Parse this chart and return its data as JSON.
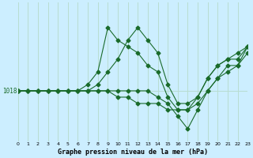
{
  "title": "Graphe pression niveau de la mer (hPa)",
  "background_color": "#cceeff",
  "grid_color": "#b8ddd0",
  "line_color": "#1a6b2a",
  "xlim": [
    0,
    23
  ],
  "ylim": [
    1010,
    1032
  ],
  "y_label_value": 1018,
  "x_ticks": [
    0,
    1,
    2,
    3,
    4,
    5,
    6,
    7,
    8,
    9,
    10,
    11,
    12,
    13,
    14,
    15,
    16,
    17,
    18,
    19,
    20,
    21,
    22,
    23
  ],
  "series": [
    {
      "x": [
        0,
        1,
        2,
        3,
        4,
        5,
        6,
        7,
        8,
        9,
        10,
        11,
        12,
        13,
        14,
        15,
        16,
        17,
        18,
        19,
        20,
        21,
        22,
        23
      ],
      "y": [
        1018,
        1018,
        1018,
        1018,
        1018,
        1018,
        1018,
        1019,
        1021,
        1028,
        1026,
        1025,
        1024,
        1022,
        1021,
        1017,
        1015,
        1015,
        1017,
        1020,
        1022,
        1023,
        1023,
        1025
      ]
    },
    {
      "x": [
        0,
        1,
        2,
        3,
        4,
        5,
        6,
        7,
        8,
        9,
        10,
        11,
        12,
        13,
        14,
        15,
        16,
        17,
        18,
        19,
        20,
        21,
        22,
        23
      ],
      "y": [
        1018,
        1018,
        1018,
        1018,
        1018,
        1018,
        1018,
        1018,
        1019,
        1021,
        1023,
        1026,
        1028,
        1026,
        1024,
        1019,
        1016,
        1016,
        1017,
        1020,
        1022,
        1023,
        1024,
        1025
      ]
    },
    {
      "x": [
        0,
        1,
        2,
        3,
        4,
        5,
        6,
        7,
        8,
        9,
        10,
        11,
        12,
        13,
        14,
        15,
        16,
        17,
        18,
        19,
        20,
        21,
        22,
        23
      ],
      "y": [
        1018,
        1018,
        1018,
        1018,
        1018,
        1018,
        1018,
        1018,
        1018,
        1018,
        1017,
        1017,
        1016,
        1016,
        1016,
        1015,
        1015,
        1015,
        1016,
        1018,
        1020,
        1022,
        1022,
        1024
      ]
    },
    {
      "x": [
        0,
        1,
        2,
        3,
        4,
        5,
        6,
        7,
        8,
        9,
        10,
        11,
        12,
        13,
        14,
        15,
        16,
        17,
        18,
        19,
        20,
        21,
        22,
        23
      ],
      "y": [
        1018,
        1018,
        1018,
        1018,
        1018,
        1018,
        1018,
        1018,
        1018,
        1018,
        1018,
        1018,
        1018,
        1018,
        1017,
        1016,
        1014,
        1012,
        1015,
        1018,
        1020,
        1021,
        1022,
        1025
      ]
    }
  ]
}
